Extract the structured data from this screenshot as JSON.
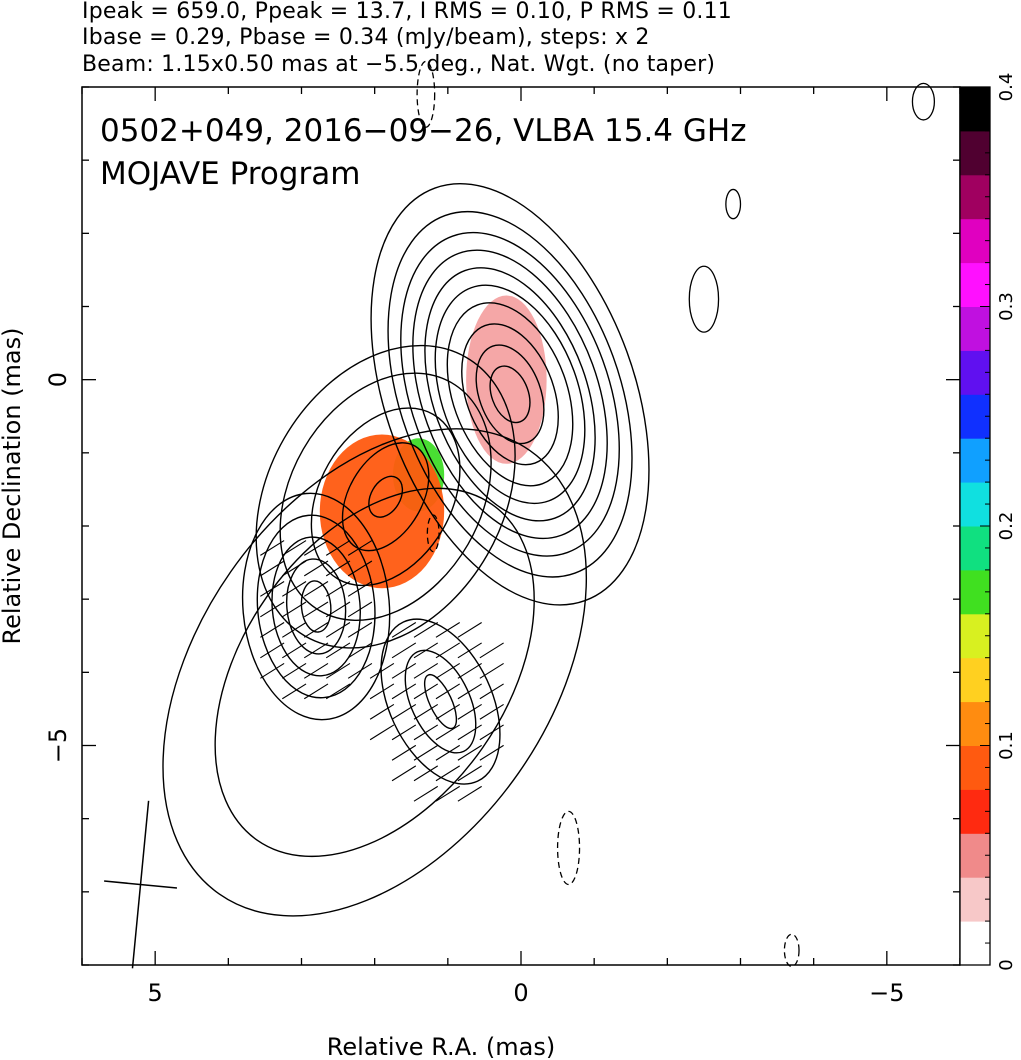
{
  "header": {
    "line1": "Ipeak = 659.0, Ppeak = 13.7, I RMS = 0.10, P RMS = 0.11",
    "line2": "Ibase = 0.29, Pbase = 0.34 (mJy/beam), steps: x 2",
    "line3": "Beam: 1.15x0.50 mas at −5.5 deg., Nat. Wgt. (no taper)"
  },
  "chart_data": {
    "type": "heatmap",
    "title": "0502+049, 2016−09−26, VLBA 15.4 GHz",
    "subtitle": "MOJAVE Program",
    "xlabel": "Relative R.A. (mas)",
    "ylabel": "Relative Declination (mas)",
    "xlim": [
      6.0,
      -6.0
    ],
    "ylim": [
      -8.0,
      4.0
    ],
    "x_ticks": [
      {
        "value": 5,
        "label": "5"
      },
      {
        "value": 0,
        "label": "0"
      },
      {
        "value": -5,
        "label": "−5"
      }
    ],
    "y_ticks": [
      {
        "value": 0,
        "label": "0"
      },
      {
        "value": -5,
        "label": "−5"
      }
    ],
    "colorbar": {
      "min": 0,
      "max": 0.4,
      "ticks": [
        {
          "value": 0,
          "label": "0"
        },
        {
          "value": 0.1,
          "label": "0.1"
        },
        {
          "value": 0.2,
          "label": "0.2"
        },
        {
          "value": 0.3,
          "label": "0.3"
        },
        {
          "value": 0.4,
          "label": "0.4"
        }
      ],
      "colors": [
        "#ffffff",
        "#f7c8c8",
        "#f08a8a",
        "#ff2a10",
        "#ff5a10",
        "#ff8c10",
        "#ffd020",
        "#d8f020",
        "#40e020",
        "#10e080",
        "#10e0e0",
        "#10a0ff",
        "#1030ff",
        "#6010f0",
        "#c010e0",
        "#ff10ff",
        "#e000c0",
        "#a00060",
        "#500030",
        "#000000"
      ]
    },
    "core_polarization": [
      {
        "x": 0.2,
        "y": 0.0,
        "rx": 0.55,
        "ry": 1.15,
        "color": "#f4a2a2"
      },
      {
        "x": 1.4,
        "y": -1.3,
        "rx": 0.35,
        "ry": 0.5,
        "color": "#3fdc28"
      },
      {
        "x": 1.9,
        "y": -1.8,
        "rx": 0.85,
        "ry": 1.05,
        "color": "#ff5a10"
      }
    ],
    "contour_groups": [
      {
        "x": 0.15,
        "y": -0.2,
        "rx": [
          0.25,
          0.42,
          0.6,
          0.78,
          0.93,
          1.05,
          1.2,
          1.35,
          1.5,
          1.7
        ],
        "ry": [
          0.4,
          0.7,
          1.0,
          1.3,
          1.55,
          1.8,
          2.05,
          2.3,
          2.6,
          3.0
        ],
        "angle": -20
      },
      {
        "x": 1.85,
        "y": -1.6,
        "rx": [
          0.2,
          0.5,
          0.9,
          1.3,
          1.6
        ],
        "ry": [
          0.3,
          0.8,
          1.3,
          1.8,
          2.2
        ],
        "angle": 30
      },
      {
        "x": 2.8,
        "y": -3.1,
        "rx": [
          0.2,
          0.4,
          0.6,
          0.8,
          1.0
        ],
        "ry": [
          0.35,
          0.65,
          0.95,
          1.25,
          1.55
        ],
        "angle": -5
      },
      {
        "x": 1.1,
        "y": -4.4,
        "rx": [
          0.15,
          0.4,
          0.7
        ],
        "ry": [
          0.4,
          0.75,
          1.2
        ],
        "angle": -25
      },
      {
        "x": 2.0,
        "y": -4.0,
        "rx": [
          1.8,
          2.4
        ],
        "ry": [
          2.8,
          3.7
        ],
        "angle": 35
      }
    ],
    "negative_contours": [
      {
        "x": 1.3,
        "y": 3.9,
        "rx": 0.12,
        "ry": 0.45
      },
      {
        "x": 1.2,
        "y": -2.1,
        "rx": 0.08,
        "ry": 0.25
      },
      {
        "x": -0.65,
        "y": -6.4,
        "rx": 0.15,
        "ry": 0.5
      },
      {
        "x": -3.7,
        "y": -7.8,
        "rx": 0.1,
        "ry": 0.22
      }
    ],
    "small_contours": [
      {
        "x": -5.5,
        "y": 3.8,
        "rx": 0.15,
        "ry": 0.25
      },
      {
        "x": -2.9,
        "y": 2.4,
        "rx": 0.1,
        "ry": 0.2
      },
      {
        "x": -2.5,
        "y": 1.1,
        "rx": 0.2,
        "ry": 0.45
      }
    ],
    "beam": {
      "x": 5.2,
      "y": -6.9,
      "major": 1.15,
      "minor": 0.5,
      "pa_deg": -5.5
    }
  }
}
